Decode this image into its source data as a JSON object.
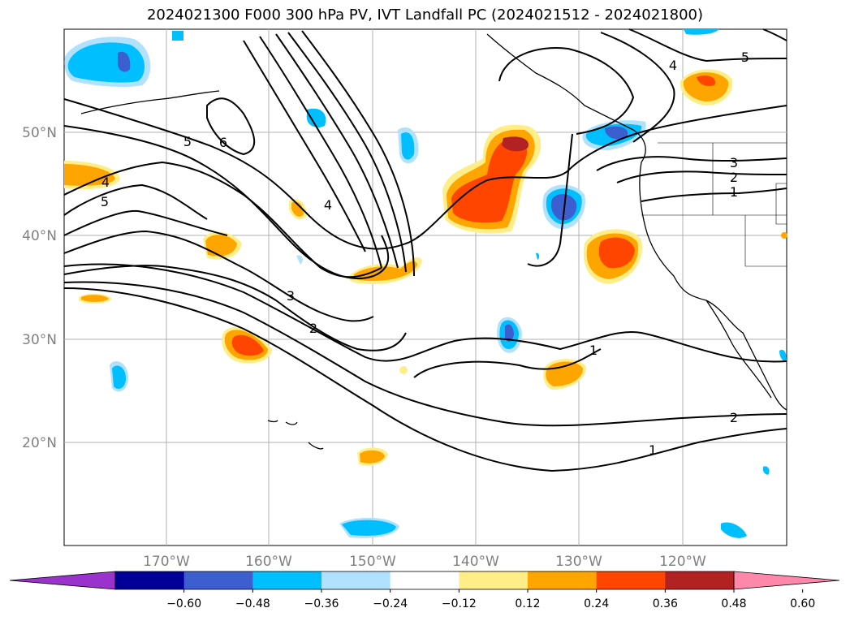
{
  "title": "2024021300 F000 300 hPa PV, IVT Landfall PC (2024021512 - 2024021800)",
  "map": {
    "lat_labels": [
      "50°N",
      "40°N",
      "30°N",
      "20°N"
    ],
    "lon_labels": [
      "170°W",
      "160°W",
      "150°W",
      "140°W",
      "130°W",
      "120°W"
    ],
    "contour_labels": [
      "5",
      "6",
      "4",
      "5",
      "4",
      "3",
      "2",
      "4",
      "5",
      "3",
      "2",
      "1",
      "1",
      "2",
      "1"
    ]
  },
  "colorbar": {
    "tick_labels": [
      "−0.60",
      "−0.48",
      "−0.36",
      "−0.24",
      "−0.12",
      "0.12",
      "0.24",
      "0.36",
      "0.48",
      "0.60"
    ],
    "colors": [
      "#9933cc",
      "#000099",
      "#3c5ecf",
      "#00bfff",
      "#b0e2ff",
      "#ffffff",
      "#ffee88",
      "#ffa500",
      "#ff4500",
      "#b22222",
      "#ff88aa"
    ]
  },
  "colors": {
    "gridline": "#b0b0b0",
    "contour": "#000000",
    "label_gray": "#808080"
  }
}
